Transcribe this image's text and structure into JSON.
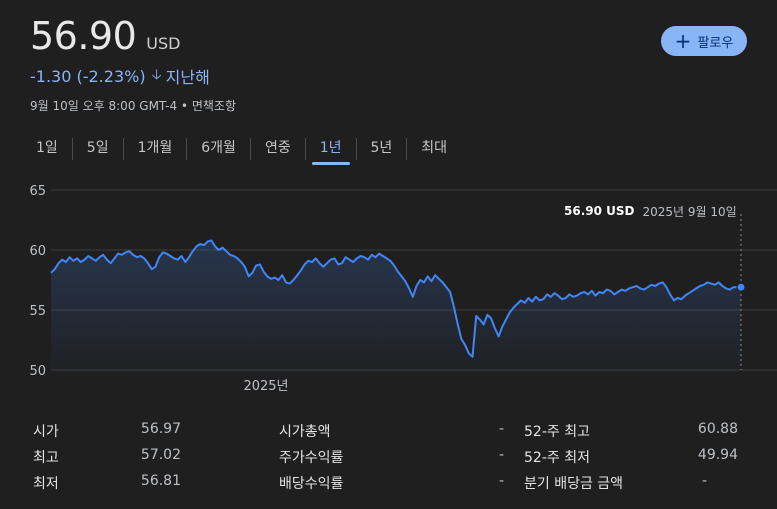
{
  "quote": {
    "price": "56.90",
    "currency": "USD",
    "change": "-1.30 (-2.23%)",
    "period": "지난해",
    "timestamp": "9월 10일 오후 8:00 GMT-4 • 면책조항"
  },
  "follow_button": {
    "label": "팔로우"
  },
  "tabs": [
    {
      "label": "1일",
      "active": false
    },
    {
      "label": "5일",
      "active": false
    },
    {
      "label": "1개월",
      "active": false
    },
    {
      "label": "6개월",
      "active": false
    },
    {
      "label": "연중",
      "active": false
    },
    {
      "label": "1년",
      "active": true
    },
    {
      "label": "5년",
      "active": false
    },
    {
      "label": "최대",
      "active": false
    }
  ],
  "tooltip": {
    "value": "56.90 USD",
    "date": "2025년 9월 10일"
  },
  "colors": {
    "accent": "#8ab4f8",
    "line": "#4285f4",
    "background": "#1f1f1f"
  },
  "chart_data": {
    "type": "line",
    "ylim": [
      50,
      65
    ],
    "yticks": [
      "65",
      "60",
      "55",
      "50"
    ],
    "xticks": [
      "2025년"
    ],
    "grid": true,
    "series": [
      {
        "values": [
          58.1,
          58.4,
          58.9,
          59.2,
          59.0,
          59.4,
          59.1,
          59.3,
          59.0,
          59.2,
          59.5,
          59.3,
          59.1,
          59.4,
          59.6,
          59.2,
          58.9,
          59.3,
          59.7,
          59.6,
          59.8,
          59.9,
          59.6,
          59.4,
          59.5,
          59.3,
          58.9,
          58.4,
          58.6,
          59.4,
          59.8,
          59.7,
          59.5,
          59.3,
          59.2,
          59.5,
          59.0,
          59.4,
          59.9,
          60.3,
          60.5,
          60.4,
          60.7,
          60.8,
          60.3,
          60.0,
          60.2,
          59.9,
          59.6,
          59.5,
          59.3,
          59.0,
          58.6,
          57.8,
          58.1,
          58.7,
          58.8,
          58.2,
          57.8,
          57.6,
          57.7,
          57.5,
          57.9,
          57.3,
          57.2,
          57.5,
          57.9,
          58.3,
          58.8,
          59.1,
          59.0,
          59.3,
          58.9,
          58.6,
          58.9,
          59.2,
          59.3,
          58.8,
          58.9,
          59.4,
          59.2,
          59.0,
          59.3,
          59.5,
          59.4,
          59.2,
          59.6,
          59.4,
          59.7,
          59.5,
          59.3,
          59.1,
          58.7,
          58.2,
          57.8,
          57.4,
          56.8,
          56.1,
          57.0,
          57.5,
          57.3,
          57.8,
          57.4,
          57.9,
          57.6,
          57.3,
          56.9,
          56.5,
          55.3,
          53.9,
          52.6,
          52.1,
          51.4,
          51.1,
          54.5,
          54.2,
          53.8,
          54.6,
          54.3,
          53.5,
          52.8,
          53.6,
          54.2,
          54.8,
          55.2,
          55.5,
          55.8,
          55.6,
          56.0,
          55.7,
          56.1,
          55.8,
          55.9,
          56.3,
          56.1,
          56.4,
          56.2,
          55.9,
          56.0,
          56.3,
          56.1,
          56.2,
          56.4,
          56.5,
          56.3,
          56.6,
          56.2,
          56.5,
          56.4,
          56.7,
          56.6,
          56.3,
          56.5,
          56.7,
          56.6,
          56.8,
          56.9,
          57.0,
          56.8,
          56.7,
          56.9,
          57.1,
          57.0,
          57.2,
          57.3,
          56.9,
          56.3,
          55.8,
          56.0,
          55.9,
          56.2,
          56.4,
          56.6,
          56.8,
          57.0,
          57.1,
          57.3,
          57.2,
          57.1,
          57.3,
          57.0,
          56.8,
          56.7,
          56.9,
          56.9,
          56.9
        ]
      }
    ]
  },
  "stats": {
    "open_label": "시가",
    "open_value": "56.97",
    "high_label": "최고",
    "high_value": "57.02",
    "low_label": "최저",
    "low_value": "56.81",
    "mktcap_label": "시가총액",
    "mktcap_value": "-",
    "pe_label": "주가수익률",
    "pe_value": "-",
    "div_label": "배당수익률",
    "div_value": "-",
    "wk52_high_label": "52-주 최고",
    "wk52_high_value": "60.88",
    "wk52_low_label": "52-주 최저",
    "wk52_low_value": "49.94",
    "qdiv_label": "분기 배당금 금액",
    "qdiv_value": "-"
  }
}
